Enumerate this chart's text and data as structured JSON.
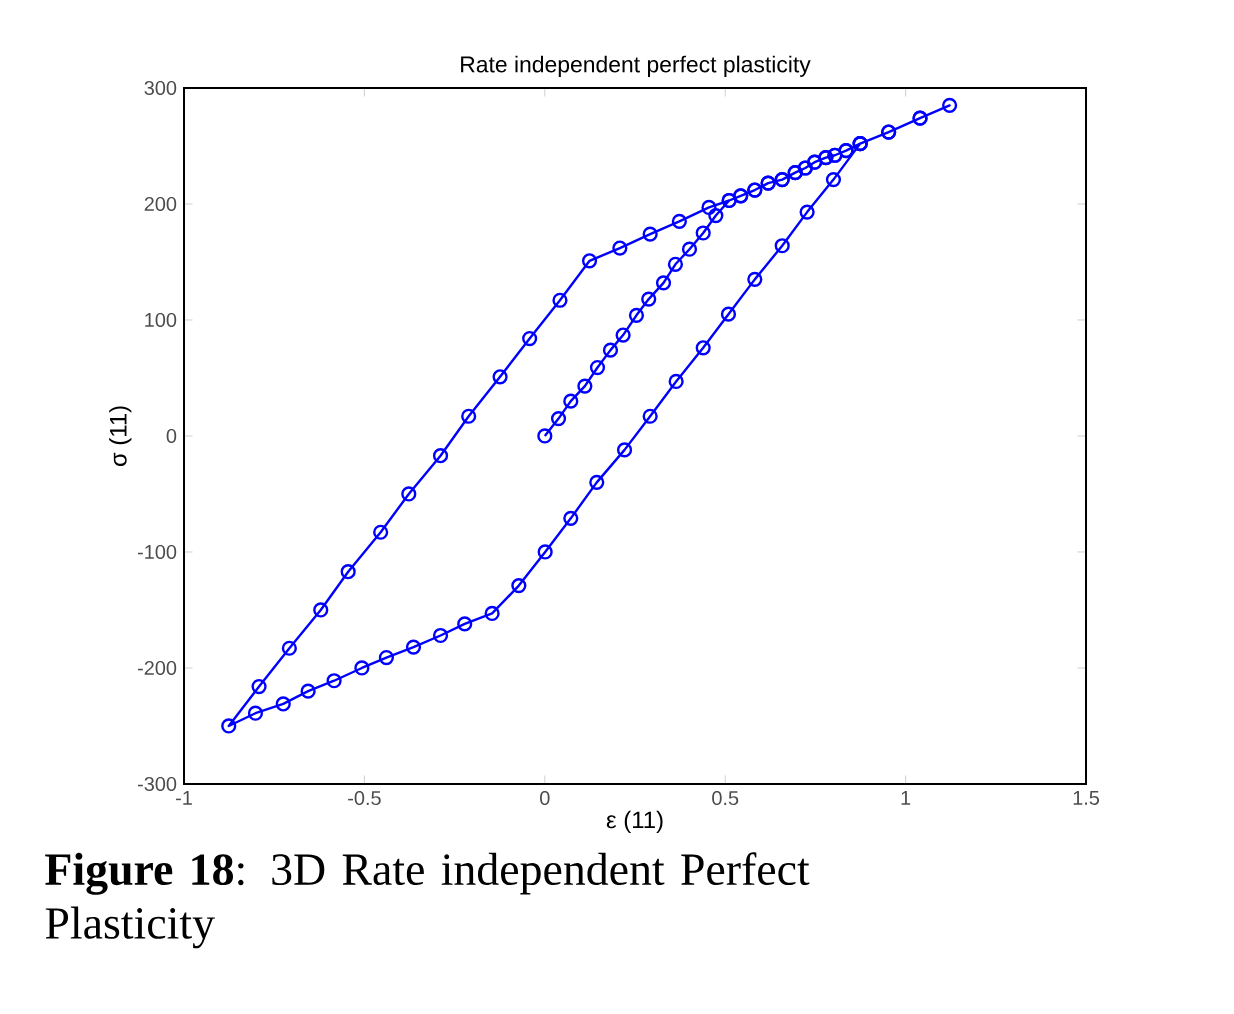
{
  "chart_data": {
    "type": "line",
    "title": "Rate independent perfect plasticity",
    "xlabel": "ε (11)",
    "ylabel": "σ (11)",
    "annotations": [
      "**Figure 18**: 3D Rate independent Perfect Plasticity"
    ],
    "x": [
      0,
      0.038,
      0.072,
      0.111,
      0.146,
      0.182,
      0.217,
      0.254,
      0.288,
      0.329,
      0.362,
      0.401,
      0.439,
      0.474,
      0.511,
      0.543,
      0.582,
      0.619,
      0.658,
      0.694,
      0.722,
      0.748,
      0.779,
      0.804,
      0.835,
      0.874,
      0.953,
      1.04,
      1.122,
      1.04,
      0.953,
      0.874,
      0.835,
      0.804,
      0.779,
      0.748,
      0.722,
      0.694,
      0.658,
      0.619,
      0.582,
      0.543,
      0.511,
      0.455,
      0.373,
      0.292,
      0.208,
      0.124,
      0.042,
      -0.042,
      -0.124,
      -0.211,
      -0.289,
      -0.377,
      -0.455,
      -0.545,
      -0.621,
      -0.708,
      -0.792,
      -0.876,
      -0.802,
      -0.725,
      -0.656,
      -0.584,
      -0.507,
      -0.439,
      -0.364,
      -0.289,
      -0.222,
      -0.146,
      -0.072,
      0.001,
      0.072,
      0.144,
      0.221,
      0.292,
      0.364,
      0.439,
      0.509,
      0.582,
      0.658,
      0.727,
      0.8,
      0.874
    ],
    "series": [
      {
        "color": "#0000ff",
        "values": [
          0,
          15,
          30,
          43,
          59,
          74,
          87,
          104,
          118,
          132,
          148,
          161,
          175,
          190,
          203,
          207,
          212,
          218,
          221,
          227,
          231,
          236,
          240,
          242,
          246,
          252,
          262,
          274,
          285,
          274,
          262,
          252,
          246,
          242,
          240,
          236,
          231,
          227,
          221,
          218,
          212,
          207,
          203,
          197,
          185,
          174,
          162,
          151,
          117,
          84,
          51,
          17,
          -17,
          -50,
          -83,
          -117,
          -150,
          -183,
          -216,
          -250,
          -239,
          -231,
          -220,
          -211,
          -200,
          -191,
          -182,
          -172,
          -162,
          -153,
          -129,
          -100,
          -71,
          -40,
          -12,
          17,
          47,
          76,
          105,
          135,
          164,
          193,
          221,
          252
        ]
      }
    ],
    "xlim": [
      -1,
      1.5
    ],
    "ylim": [
      -300,
      300
    ],
    "xticks": [
      -1,
      -0.5,
      0,
      0.5,
      1,
      1.5
    ],
    "yticks": [
      -300,
      -200,
      -100,
      0,
      100,
      200,
      300
    ],
    "marker": "circle",
    "line_style": "solid"
  }
}
